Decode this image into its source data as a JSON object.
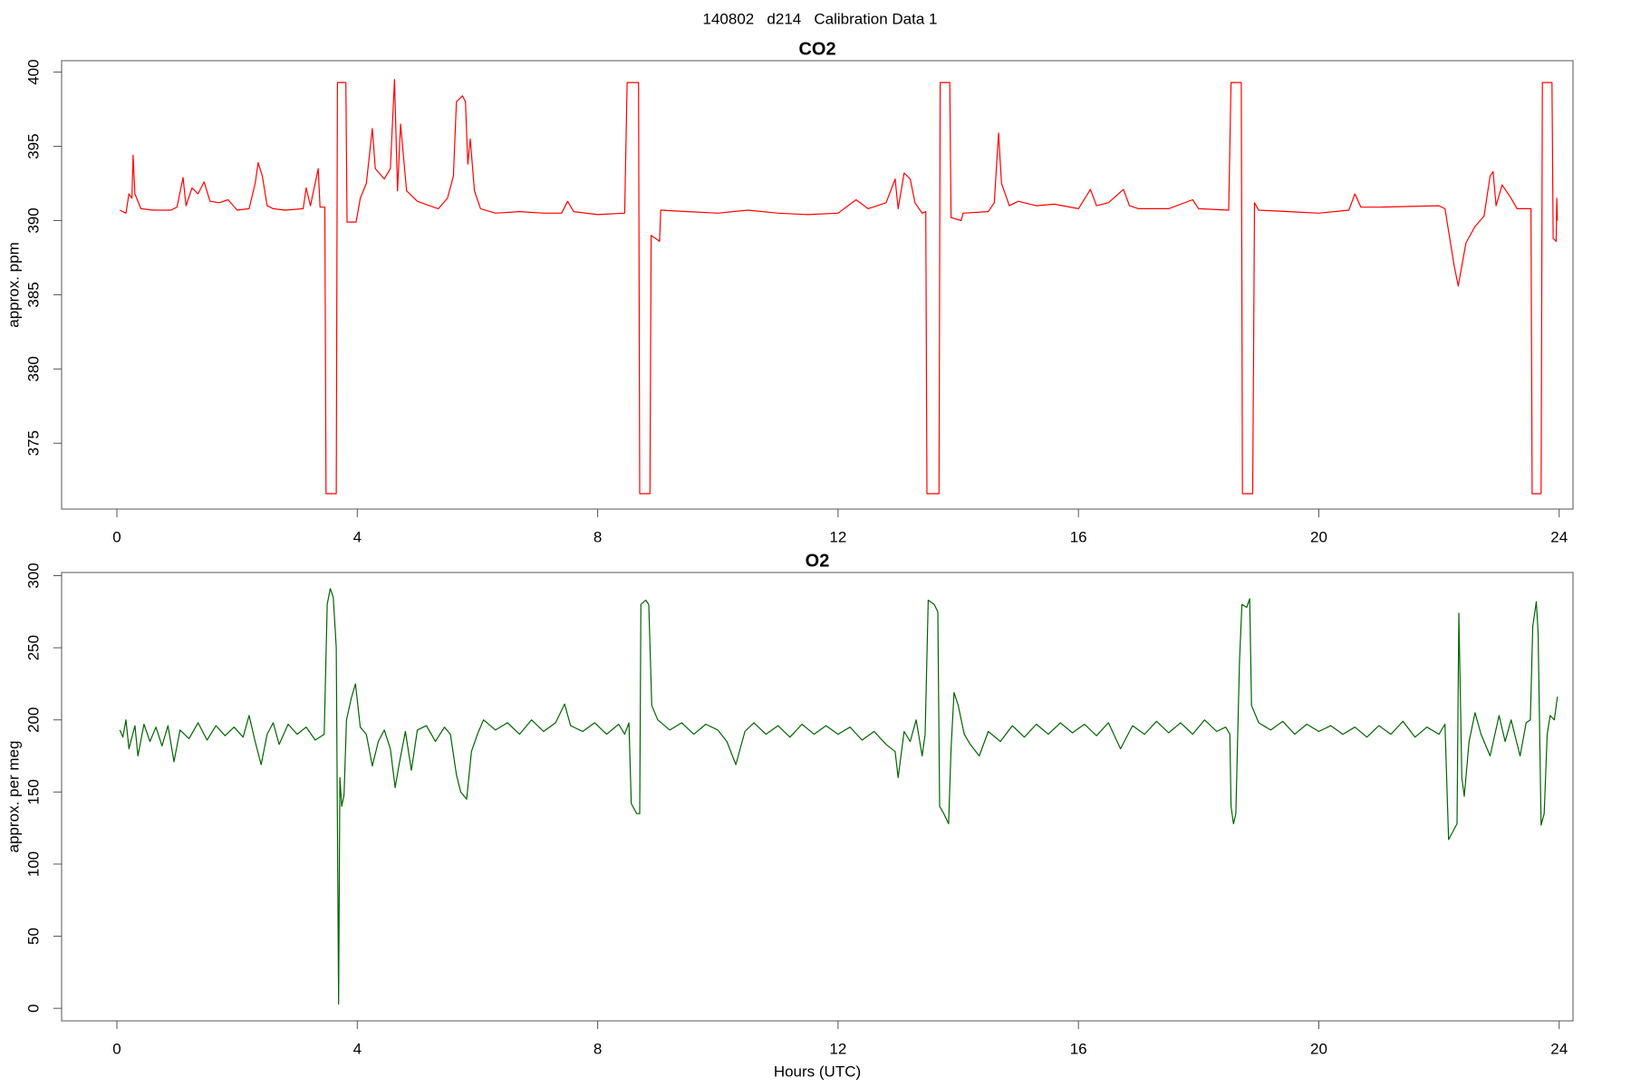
{
  "title": "140802   d214   Calibration Data 1",
  "chart_data": [
    {
      "type": "line",
      "title": "CO2",
      "y_label": "approx. ppm",
      "color": "#ff0000",
      "xlim": [
        -0.92,
        24.23
      ],
      "xticks": [
        0,
        4,
        8,
        12,
        16,
        20,
        24
      ],
      "ylim": [
        370.56,
        400.77
      ],
      "yticks": [
        375,
        380,
        385,
        390,
        395,
        400
      ],
      "x": [
        0.05,
        0.15,
        0.2,
        0.25,
        0.27,
        0.3,
        0.4,
        0.6,
        0.9,
        1.0,
        1.1,
        1.15,
        1.25,
        1.35,
        1.45,
        1.55,
        1.7,
        1.85,
        2.0,
        2.2,
        2.3,
        2.35,
        2.42,
        2.5,
        2.6,
        2.8,
        3.1,
        3.15,
        3.22,
        3.35,
        3.38,
        3.46,
        3.48,
        3.65,
        3.67,
        3.81,
        3.83,
        3.98,
        4.05,
        4.15,
        4.25,
        4.3,
        4.45,
        4.55,
        4.62,
        4.67,
        4.72,
        4.82,
        5.0,
        5.2,
        5.35,
        5.5,
        5.6,
        5.65,
        5.75,
        5.8,
        5.84,
        5.88,
        5.95,
        6.05,
        6.3,
        6.7,
        7.1,
        7.4,
        7.5,
        7.6,
        8.0,
        8.45,
        8.49,
        8.68,
        8.7,
        8.87,
        8.89,
        9.03,
        9.05,
        9.5,
        10.0,
        10.5,
        11.0,
        11.5,
        12.0,
        12.3,
        12.5,
        12.8,
        12.95,
        13.0,
        13.1,
        13.2,
        13.28,
        13.4,
        13.46,
        13.48,
        13.68,
        13.7,
        13.86,
        13.88,
        14.05,
        14.08,
        14.5,
        14.6,
        14.67,
        14.72,
        14.85,
        15.0,
        15.3,
        15.6,
        16.0,
        16.2,
        16.3,
        16.5,
        16.75,
        16.85,
        17.0,
        17.5,
        17.9,
        18.0,
        18.5,
        18.54,
        18.71,
        18.73,
        18.9,
        18.93,
        19.0,
        19.5,
        20.0,
        20.5,
        20.6,
        20.7,
        21.0,
        22.0,
        22.1,
        22.25,
        22.32,
        22.45,
        22.6,
        22.75,
        22.85,
        22.9,
        22.95,
        23.05,
        23.2,
        23.3,
        23.53,
        23.55,
        23.7,
        23.72,
        23.88,
        23.9,
        23.95,
        23.96,
        23.97
      ],
      "values": [
        390.7,
        390.5,
        391.8,
        391.5,
        394.4,
        391.8,
        390.8,
        390.7,
        390.7,
        390.9,
        392.9,
        391,
        392.2,
        391.8,
        392.6,
        391.3,
        391.2,
        391.4,
        390.7,
        390.8,
        392.5,
        393.9,
        393,
        391,
        390.8,
        390.7,
        390.8,
        392.2,
        391,
        393.5,
        390.9,
        390.9,
        371.6,
        371.6,
        399.3,
        399.3,
        389.9,
        389.9,
        391.5,
        392.5,
        396.2,
        393.5,
        392.8,
        393.5,
        399.5,
        392,
        396.5,
        392,
        391.3,
        391,
        390.8,
        391.5,
        393,
        398,
        398.4,
        398,
        393.8,
        395.5,
        392,
        390.8,
        390.5,
        390.6,
        390.5,
        390.5,
        391.3,
        390.6,
        390.4,
        390.5,
        399.3,
        399.3,
        371.6,
        371.6,
        389,
        388.6,
        390.7,
        390.6,
        390.5,
        390.7,
        390.5,
        390.4,
        390.5,
        391.4,
        390.8,
        391.2,
        392.8,
        390.8,
        393.2,
        392.8,
        391.2,
        390.5,
        390.6,
        371.6,
        371.6,
        399.3,
        399.3,
        390.2,
        390,
        390.5,
        390.6,
        391.2,
        395.9,
        392.5,
        391,
        391.3,
        391,
        391.1,
        390.8,
        392.1,
        391,
        391.2,
        392.1,
        391,
        390.8,
        390.8,
        391.4,
        390.8,
        390.7,
        399.3,
        399.3,
        371.6,
        371.6,
        391.2,
        390.7,
        390.6,
        390.5,
        390.7,
        391.8,
        390.9,
        390.9,
        391,
        390.8,
        387,
        385.6,
        388.5,
        389.6,
        390.3,
        393,
        393.3,
        391,
        392.4,
        391.5,
        390.8,
        390.8,
        371.6,
        371.6,
        399.3,
        399.3,
        388.8,
        388.6,
        391.5,
        390
      ]
    },
    {
      "type": "line",
      "title": "O2",
      "y_label": "approx. per meg",
      "x_label": "Hours (UTC)",
      "color": "#006400",
      "xlim": [
        -0.92,
        24.23
      ],
      "xticks": [
        0,
        4,
        8,
        12,
        16,
        20,
        24
      ],
      "ylim": [
        -8.7,
        302.2
      ],
      "yticks": [
        0,
        50,
        100,
        150,
        200,
        250,
        300
      ],
      "x": [
        0.05,
        0.1,
        0.15,
        0.2,
        0.3,
        0.35,
        0.45,
        0.55,
        0.65,
        0.75,
        0.85,
        0.95,
        1.05,
        1.2,
        1.35,
        1.5,
        1.65,
        1.8,
        1.95,
        2.1,
        2.2,
        2.3,
        2.4,
        2.5,
        2.6,
        2.7,
        2.85,
        3.0,
        3.15,
        3.3,
        3.45,
        3.5,
        3.55,
        3.6,
        3.65,
        3.69,
        3.71,
        3.74,
        3.78,
        3.82,
        3.9,
        3.97,
        4.05,
        4.15,
        4.25,
        4.35,
        4.45,
        4.55,
        4.63,
        4.7,
        4.8,
        4.9,
        5.0,
        5.15,
        5.3,
        5.45,
        5.55,
        5.65,
        5.72,
        5.82,
        5.9,
        6.0,
        6.1,
        6.3,
        6.5,
        6.7,
        6.9,
        7.1,
        7.3,
        7.45,
        7.55,
        7.75,
        7.95,
        8.15,
        8.35,
        8.45,
        8.52,
        8.56,
        8.65,
        8.7,
        8.72,
        8.8,
        8.85,
        8.9,
        9.0,
        9.2,
        9.4,
        9.6,
        9.8,
        10.0,
        10.15,
        10.3,
        10.45,
        10.6,
        10.8,
        11.0,
        11.2,
        11.4,
        11.6,
        11.8,
        12.0,
        12.2,
        12.4,
        12.6,
        12.8,
        12.95,
        13.0,
        13.1,
        13.2,
        13.3,
        13.4,
        13.45,
        13.5,
        13.6,
        13.66,
        13.69,
        13.76,
        13.84,
        13.88,
        13.93,
        14.0,
        14.1,
        14.2,
        14.35,
        14.5,
        14.7,
        14.9,
        15.1,
        15.3,
        15.5,
        15.7,
        15.9,
        16.1,
        16.3,
        16.5,
        16.7,
        16.9,
        17.1,
        17.3,
        17.5,
        17.7,
        17.9,
        18.1,
        18.3,
        18.45,
        18.52,
        18.54,
        18.58,
        18.62,
        18.68,
        18.72,
        18.8,
        18.85,
        18.88,
        19.0,
        19.2,
        19.4,
        19.6,
        19.8,
        20.0,
        20.2,
        20.4,
        20.6,
        20.8,
        21.0,
        21.2,
        21.4,
        21.6,
        21.8,
        22.0,
        22.1,
        22.16,
        22.3,
        22.33,
        22.38,
        22.42,
        22.5,
        22.6,
        22.7,
        22.85,
        23.0,
        23.1,
        23.2,
        23.35,
        23.45,
        23.52,
        23.56,
        23.62,
        23.65,
        23.7,
        23.75,
        23.8,
        23.85,
        23.92,
        23.97
      ],
      "values": [
        193,
        188,
        200,
        180,
        196,
        175,
        197,
        185,
        195,
        182,
        196,
        171,
        193,
        187,
        198,
        186,
        196,
        189,
        195,
        188,
        203,
        185,
        169,
        190,
        198,
        183,
        197,
        190,
        195,
        186,
        190,
        280,
        291,
        285,
        250,
        3,
        160,
        140,
        148,
        200,
        215,
        225,
        195,
        190,
        168,
        185,
        193,
        180,
        153,
        170,
        192,
        165,
        193,
        196,
        185,
        195,
        190,
        162,
        150,
        145,
        178,
        190,
        200,
        193,
        198,
        190,
        200,
        192,
        198,
        211,
        196,
        192,
        198,
        190,
        197,
        190,
        198,
        142,
        135,
        135,
        280,
        283,
        280,
        210,
        200,
        193,
        198,
        190,
        197,
        193,
        185,
        169,
        192,
        198,
        190,
        196,
        188,
        197,
        190,
        196,
        190,
        195,
        186,
        192,
        183,
        178,
        160,
        192,
        185,
        200,
        175,
        190,
        283,
        280,
        275,
        140,
        135,
        128,
        180,
        219,
        210,
        190,
        183,
        175,
        192,
        185,
        196,
        188,
        197,
        190,
        198,
        191,
        197,
        189,
        198,
        180,
        196,
        190,
        199,
        191,
        198,
        190,
        200,
        192,
        195,
        190,
        140,
        128,
        135,
        240,
        280,
        278,
        284,
        210,
        198,
        193,
        199,
        190,
        197,
        192,
        196,
        190,
        195,
        188,
        196,
        190,
        199,
        188,
        195,
        190,
        197,
        117,
        128,
        274,
        160,
        147,
        185,
        205,
        190,
        175,
        203,
        185,
        200,
        175,
        198,
        200,
        265,
        282,
        260,
        127,
        135,
        190,
        203,
        200,
        216
      ]
    }
  ]
}
